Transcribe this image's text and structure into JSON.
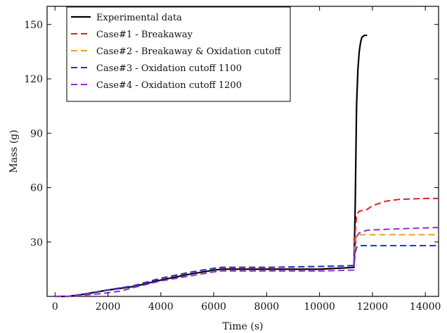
{
  "chart_data": {
    "type": "line",
    "xlabel": "Time (s)",
    "ylabel": "Mass (g)",
    "xlim": [
      -300,
      14500
    ],
    "ylim": [
      0,
      160
    ],
    "xticks": [
      0,
      2000,
      4000,
      6000,
      8000,
      10000,
      12000,
      14000
    ],
    "yticks": [
      30,
      60,
      90,
      120,
      150
    ],
    "grid": false,
    "legend_position": "top-left",
    "series": [
      {
        "name": "Experimental data",
        "color": "#000000",
        "dash": "solid",
        "x": [
          0,
          500,
          1000,
          2000,
          3000,
          4000,
          5000,
          6000,
          6300,
          8000,
          10000,
          11300,
          11350,
          11400,
          11450,
          11500,
          11550,
          11600,
          11700,
          11800
        ],
        "y": [
          0,
          0,
          1,
          3.5,
          5.5,
          9,
          12,
          14.5,
          15,
          15,
          15,
          16,
          50,
          105,
          125,
          135,
          140,
          143,
          144,
          144
        ]
      },
      {
        "name": "Case#1 - Breakaway",
        "color": "#e02020",
        "dash": "dashed",
        "x": [
          0,
          500,
          1000,
          2000,
          3000,
          4000,
          5000,
          6000,
          6300,
          8000,
          10000,
          11300,
          11350,
          11400,
          11500,
          11800,
          12000,
          12500,
          13000,
          14000,
          14500
        ],
        "y": [
          0,
          0,
          1,
          3.5,
          6,
          10,
          13,
          15.5,
          16,
          16,
          16.5,
          17,
          35,
          45,
          47,
          48,
          50,
          52.5,
          53.5,
          54,
          54
        ]
      },
      {
        "name": "Case#2 - Breakaway & Oxidation cutoff",
        "color": "#f0a020",
        "dash": "dashed",
        "x": [
          0,
          500,
          1000,
          2000,
          3000,
          4000,
          5000,
          6000,
          6300,
          8000,
          10000,
          11300,
          11350,
          11400,
          11500,
          12000,
          14500
        ],
        "y": [
          0,
          0,
          1,
          3.5,
          6,
          10,
          13,
          15.5,
          16,
          16,
          16.5,
          17,
          30,
          33,
          34,
          34,
          34
        ]
      },
      {
        "name": "Case#3 - Oxidation cutoff 1100",
        "color": "#2030d0",
        "dash": "dashed",
        "x": [
          0,
          500,
          1000,
          2000,
          3000,
          4000,
          5000,
          6000,
          6300,
          8000,
          10000,
          11300,
          11350,
          11400,
          11500,
          12000,
          14500
        ],
        "y": [
          0,
          0,
          1,
          3.5,
          6,
          10,
          13,
          15.5,
          16,
          16,
          16.5,
          17,
          24,
          27,
          28,
          28,
          28
        ]
      },
      {
        "name": "Case#4 - Oxidation cutoff 1200",
        "color": "#9a2ad0",
        "dash": "dashed",
        "x": [
          0,
          500,
          1000,
          2000,
          2500,
          3000,
          4000,
          5000,
          6000,
          6300,
          8000,
          10000,
          11300,
          11350,
          11400,
          11500,
          11800,
          12500,
          13500,
          14500
        ],
        "y": [
          0,
          0,
          0.5,
          2,
          3,
          5,
          8.5,
          11,
          13.5,
          14,
          14,
          14,
          14.5,
          28,
          33,
          35,
          36.5,
          37,
          37.5,
          38
        ]
      }
    ]
  }
}
